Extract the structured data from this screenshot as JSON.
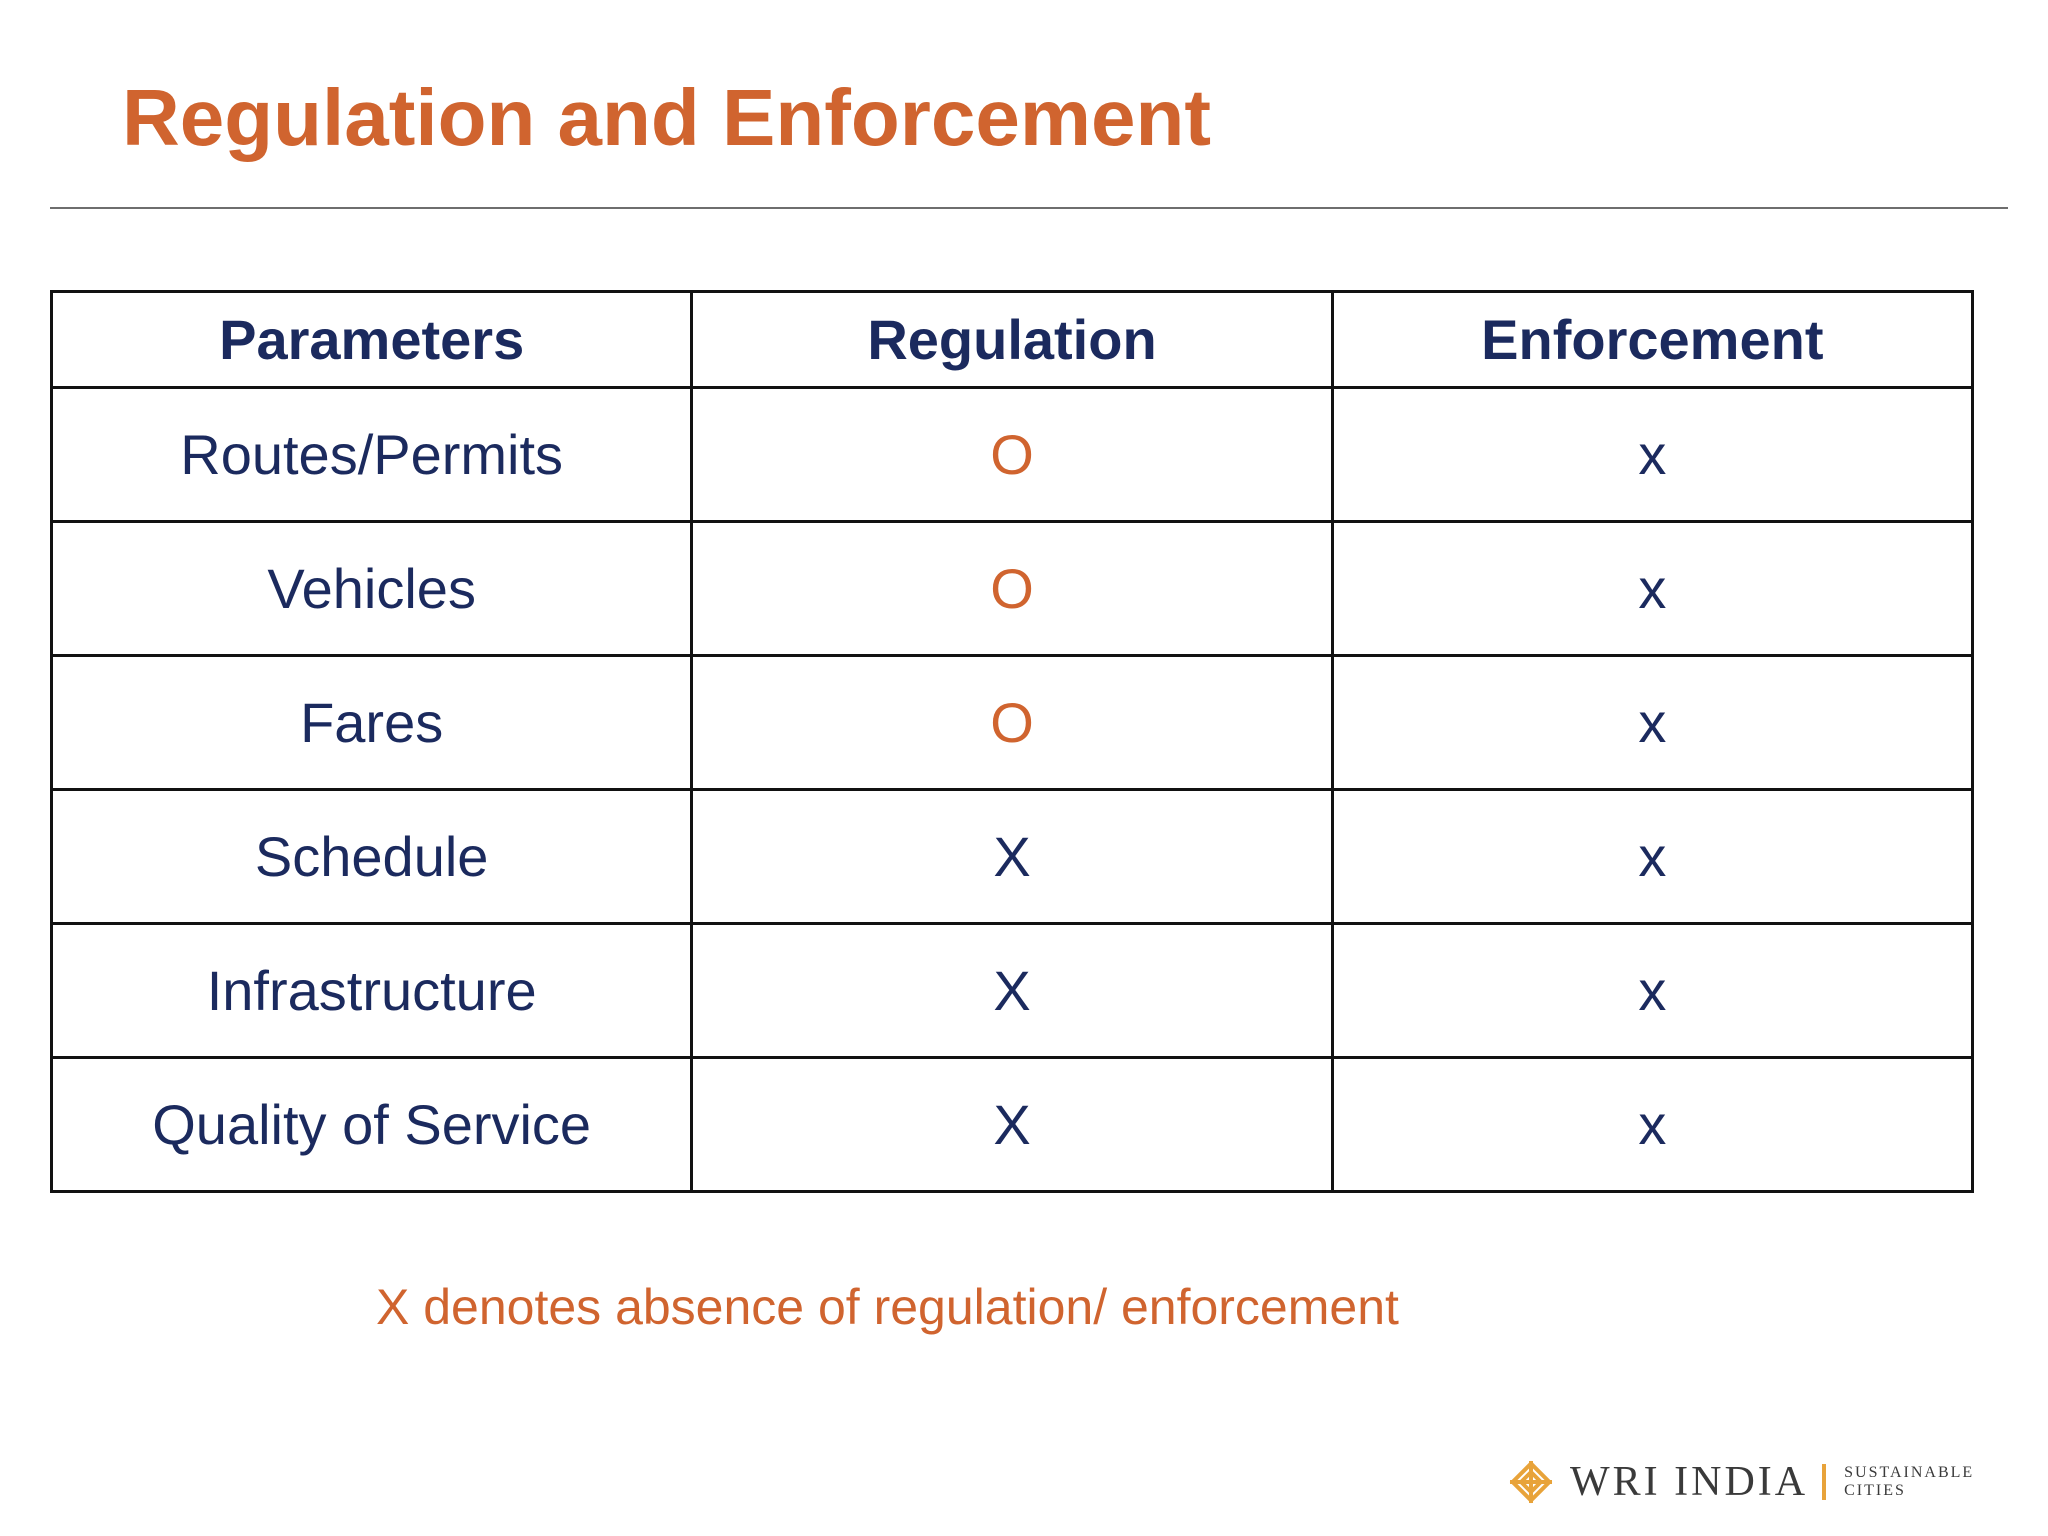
{
  "slide": {
    "title": "Regulation and Enforcement",
    "footnote": "X denotes absence of regulation/ enforcement"
  },
  "table": {
    "headers": [
      "Parameters",
      "Regulation",
      "Enforcement"
    ],
    "rows": [
      {
        "parameter": "Routes/Permits",
        "regulation": "O",
        "enforcement": "x"
      },
      {
        "parameter": "Vehicles",
        "regulation": "O",
        "enforcement": "x"
      },
      {
        "parameter": "Fares",
        "regulation": "O",
        "enforcement": "x"
      },
      {
        "parameter": "Schedule",
        "regulation": "X",
        "enforcement": "x"
      },
      {
        "parameter": "Infrastructure",
        "regulation": "X",
        "enforcement": "x"
      },
      {
        "parameter": "Quality of Service",
        "regulation": "X",
        "enforcement": "x"
      }
    ]
  },
  "logo": {
    "name": "WRI INDIA",
    "tagline_line1": "SUSTAINABLE",
    "tagline_line2": "CITIES",
    "icon": "wri-knot-icon"
  },
  "colors": {
    "accent_orange": "#d0642f",
    "text_navy": "#1b2a5e",
    "logo_gold": "#e8a33a"
  }
}
